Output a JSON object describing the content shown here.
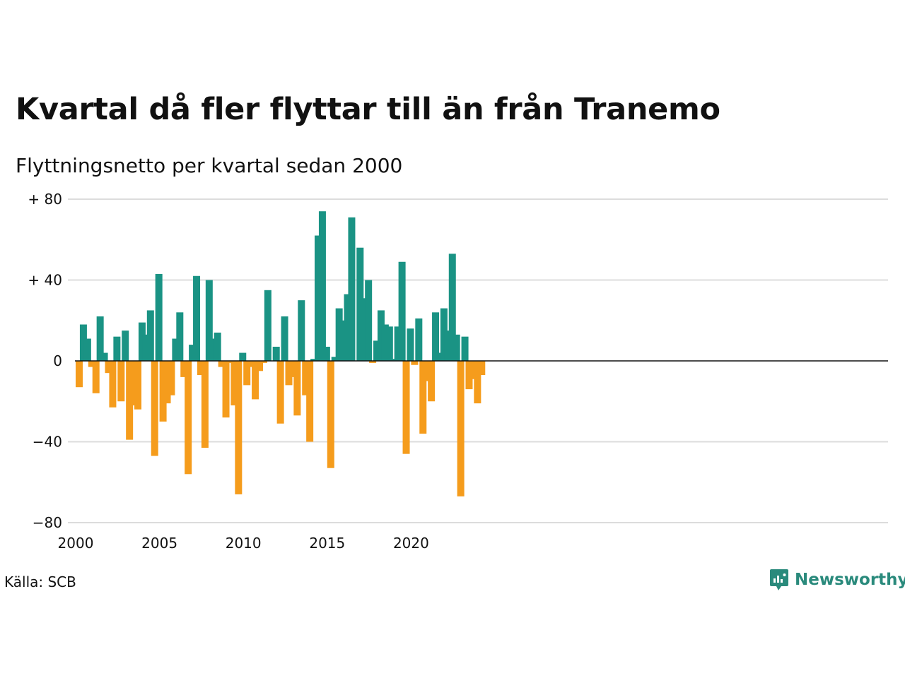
{
  "title": "Kvartal då fler flyttar till än från Tranemo",
  "subtitle": "Flyttningsnetto per kvartal sedan 2000",
  "source": "Källa: SCB",
  "brand": {
    "name": "Newsworthy",
    "icon": "newsworthy-logo-icon"
  },
  "colors": {
    "positive": "#1a9384",
    "negative": "#f59c1c",
    "grid": "#dcdcdc",
    "zero": "#111111"
  },
  "chart_data": {
    "type": "bar",
    "title": "Kvartal då fler flyttar till än från Tranemo",
    "subtitle": "Flyttningsnetto per kvartal sedan 2000",
    "xlabel": "",
    "ylabel": "",
    "ylim": [
      -80,
      80
    ],
    "yticks": [
      {
        "value": 80,
        "label": "+ 80"
      },
      {
        "value": 40,
        "label": "+ 40"
      },
      {
        "value": 0,
        "label": "0"
      },
      {
        "value": -40,
        "label": "−40"
      },
      {
        "value": -80,
        "label": "−80"
      }
    ],
    "xticks": [
      "2000",
      "2005",
      "2010",
      "2015",
      "2020"
    ],
    "grid": true,
    "start_year": 2000,
    "quarters_per_year": 4,
    "values": [
      -13,
      18,
      11,
      -3,
      -16,
      22,
      4,
      -6,
      -23,
      12,
      -20,
      15,
      -39,
      -22,
      -24,
      19,
      13,
      25,
      -47,
      43,
      -30,
      -21,
      -17,
      11,
      24,
      -8,
      -56,
      8,
      42,
      -7,
      -43,
      40,
      11,
      14,
      -3,
      -28,
      -1,
      -22,
      -66,
      4,
      -12,
      -3,
      -19,
      -5,
      -1,
      35,
      0,
      7,
      -31,
      22,
      -12,
      -8,
      -27,
      30,
      -17,
      -40,
      1,
      62,
      74,
      7,
      -53,
      2,
      26,
      20,
      33,
      71,
      0,
      56,
      31,
      40,
      -1,
      10,
      25,
      18,
      17,
      1,
      17,
      49,
      -46,
      16,
      -2,
      21,
      -36,
      -10,
      -20,
      24,
      4,
      26,
      15,
      53,
      13,
      -67,
      12,
      -14,
      -9,
      -21,
      -7
    ]
  }
}
